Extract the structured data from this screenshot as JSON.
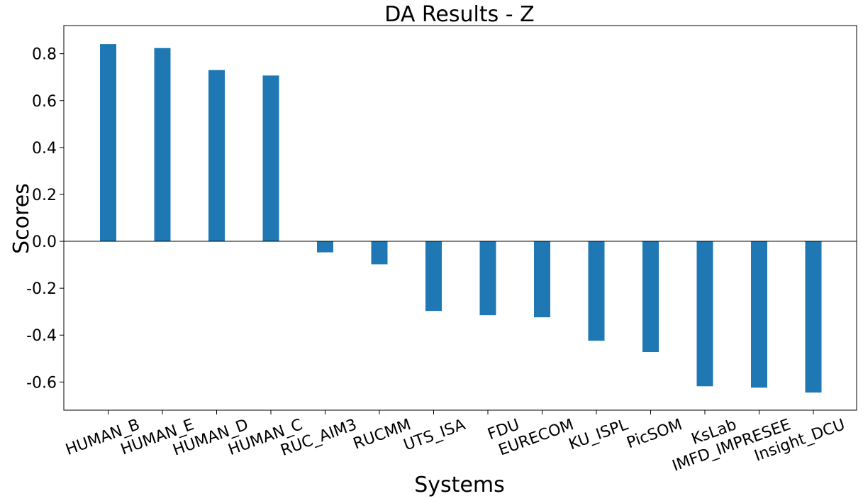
{
  "chart_data": {
    "type": "bar",
    "title": "DA Results - Z",
    "xlabel": "Systems",
    "ylabel": "Scores",
    "categories": [
      "HUMAN_B",
      "HUMAN_E",
      "HUMAN_D",
      "HUMAN_C",
      "RUC_AIM3",
      "RUCMM",
      "UTS_ISA",
      "FDU",
      "EURECOM",
      "KU_ISPL",
      "PicSOM",
      "KsLab",
      "IMFD_IMPRESEE",
      "Insight_DCU"
    ],
    "values": [
      0.841,
      0.824,
      0.73,
      0.707,
      -0.047,
      -0.098,
      -0.297,
      -0.315,
      -0.324,
      -0.424,
      -0.472,
      -0.618,
      -0.624,
      -0.645
    ],
    "yticks": [
      -0.6,
      -0.4,
      -0.2,
      0.0,
      0.2,
      0.4,
      0.6,
      0.8
    ],
    "ytick_labels": [
      "-0.6",
      "-0.4",
      "-0.2",
      "0.0",
      "0.2",
      "0.4",
      "0.6",
      "0.8"
    ],
    "ylim": [
      -0.72,
      0.92
    ],
    "bar_color": "#1f77b4",
    "grid": false,
    "zero_line": true,
    "xtick_rotation": 20
  }
}
